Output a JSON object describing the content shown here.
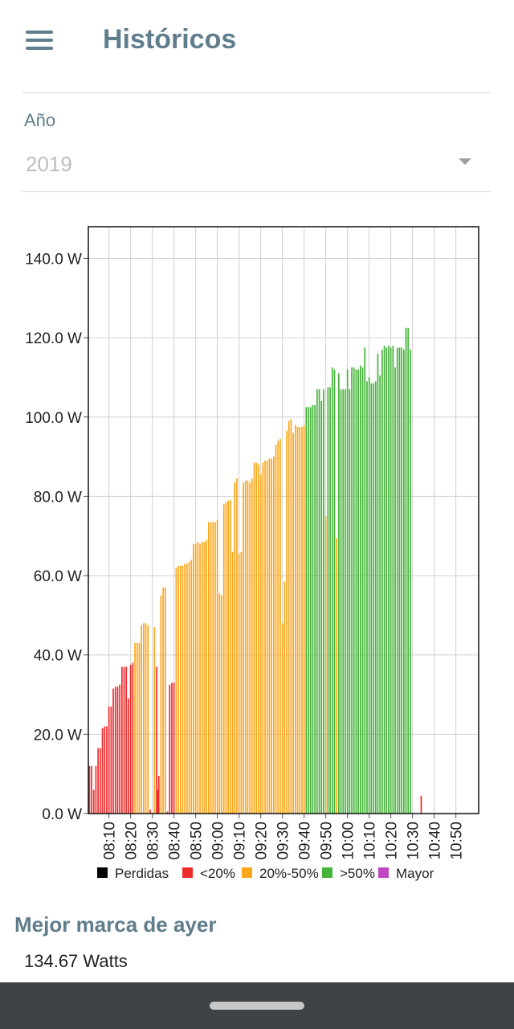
{
  "header": {
    "title": "Históricos",
    "menu_icon": "hamburger-menu-icon"
  },
  "year_filter": {
    "label": "Año",
    "value": "2019"
  },
  "chart_data": {
    "type": "bar",
    "stacked": true,
    "ylim": [
      0,
      148
    ],
    "y_ticks": [
      "0.0 W",
      "20.0 W",
      "40.0 W",
      "60.0 W",
      "80.0 W",
      "100.0 W",
      "120.0 W",
      "140.0 W"
    ],
    "y_tick_values": [
      0,
      20,
      40,
      60,
      80,
      100,
      120,
      140
    ],
    "x_ticks": [
      "08:10",
      "08:20",
      "08:30",
      "08:40",
      "08:50",
      "09:00",
      "09:10",
      "09:20",
      "09:30",
      "09:40",
      "09:50",
      "10:00",
      "10:10",
      "10:20",
      "10:30",
      "10:40",
      "10:50"
    ],
    "x_tick_minutes": [
      490,
      500,
      510,
      520,
      530,
      540,
      550,
      560,
      570,
      580,
      590,
      600,
      610,
      620,
      630,
      640,
      650
    ],
    "x_range_minutes": [
      481,
      660
    ],
    "grid": true,
    "legend_position": "bottom",
    "series": [
      {
        "name": "Perdidas",
        "color": "#000000",
        "points": []
      },
      {
        "name": "<20%",
        "color": "#ee2b2b",
        "points": [
          [
            481,
            12
          ],
          [
            482,
            12
          ],
          [
            483,
            6
          ],
          [
            484,
            12
          ],
          [
            485,
            16.5
          ],
          [
            486,
            16.5
          ],
          [
            487,
            21.5
          ],
          [
            488,
            22
          ],
          [
            489,
            22
          ],
          [
            490,
            27
          ],
          [
            491,
            27
          ],
          [
            492,
            31.5
          ],
          [
            493,
            32
          ],
          [
            494,
            32
          ],
          [
            495,
            32.5
          ],
          [
            496,
            37
          ],
          [
            497,
            37
          ],
          [
            498,
            37
          ],
          [
            499,
            29
          ],
          [
            500,
            37.5
          ],
          [
            501,
            38
          ],
          [
            509,
            1
          ],
          [
            511,
            1
          ],
          [
            512,
            37
          ],
          [
            512.5,
            6
          ],
          [
            513,
            9.5
          ],
          [
            517,
            0.5
          ],
          [
            518,
            32.5
          ],
          [
            519,
            33
          ],
          [
            520,
            33
          ],
          [
            548,
            0.5
          ],
          [
            634,
            4.5
          ]
        ]
      },
      {
        "name": "20%-50%",
        "color": "#fba61d",
        "points": [
          [
            502,
            43
          ],
          [
            503,
            43
          ],
          [
            504,
            43
          ],
          [
            505,
            47.5
          ],
          [
            506,
            48
          ],
          [
            507,
            48
          ],
          [
            508,
            47.5
          ],
          [
            511,
            47
          ],
          [
            514,
            55
          ],
          [
            515,
            57
          ],
          [
            516,
            57
          ],
          [
            521,
            62
          ],
          [
            522,
            62.5
          ],
          [
            523,
            62.5
          ],
          [
            524,
            62.5
          ],
          [
            525,
            63
          ],
          [
            526,
            63
          ],
          [
            527,
            63.5
          ],
          [
            528,
            64
          ],
          [
            529,
            68
          ],
          [
            530,
            68
          ],
          [
            531,
            68.5
          ],
          [
            532,
            68
          ],
          [
            533,
            68.5
          ],
          [
            534,
            68.5
          ],
          [
            535,
            69
          ],
          [
            536,
            73.5
          ],
          [
            537,
            73.5
          ],
          [
            538,
            73.5
          ],
          [
            539,
            73.5
          ],
          [
            540,
            74
          ],
          [
            541,
            55.5
          ],
          [
            542,
            55
          ],
          [
            543,
            78
          ],
          [
            544,
            78.5
          ],
          [
            545,
            79
          ],
          [
            546,
            79
          ],
          [
            547,
            66
          ],
          [
            548,
            83.5
          ],
          [
            549,
            84.5
          ],
          [
            550,
            65.5
          ],
          [
            551,
            66
          ],
          [
            552,
            83.5
          ],
          [
            553,
            84
          ],
          [
            554,
            84
          ],
          [
            555,
            83.5
          ],
          [
            556,
            84.5
          ],
          [
            557,
            88.5
          ],
          [
            558,
            88.5
          ],
          [
            559,
            88
          ],
          [
            560,
            85.5
          ],
          [
            561,
            88.5
          ],
          [
            562,
            89
          ],
          [
            563,
            89
          ],
          [
            564,
            89.5
          ],
          [
            565,
            89.5
          ],
          [
            566,
            90
          ],
          [
            567,
            93
          ],
          [
            568,
            94
          ],
          [
            569,
            94.5
          ],
          [
            570,
            48
          ],
          [
            571,
            58.5
          ],
          [
            572,
            96.5
          ],
          [
            573,
            99
          ],
          [
            574,
            99.5
          ],
          [
            575,
            96
          ],
          [
            576,
            98
          ],
          [
            577,
            97.5
          ],
          [
            578,
            97.5
          ],
          [
            579,
            97.5
          ],
          [
            580,
            98
          ],
          [
            590,
            75
          ],
          [
            595,
            69.5
          ]
        ]
      },
      {
        "name": ">50%",
        "color": "#46b33a",
        "points": [
          [
            581,
            102.5
          ],
          [
            582,
            102.5
          ],
          [
            583,
            102.5
          ],
          [
            584,
            103
          ],
          [
            585,
            103
          ],
          [
            586,
            107
          ],
          [
            587,
            107
          ],
          [
            588,
            104
          ],
          [
            589,
            107
          ],
          [
            591,
            107.5
          ],
          [
            592,
            107.5
          ],
          [
            593,
            112.5
          ],
          [
            594,
            112
          ],
          [
            596,
            111
          ],
          [
            597,
            107
          ],
          [
            598,
            107
          ],
          [
            599,
            107
          ],
          [
            600,
            112
          ],
          [
            601,
            107
          ],
          [
            602,
            112.5
          ],
          [
            603,
            112.5
          ],
          [
            604,
            112
          ],
          [
            605,
            112
          ],
          [
            606,
            113
          ],
          [
            607,
            112.5
          ],
          [
            608,
            117.5
          ],
          [
            609,
            109
          ],
          [
            610,
            110
          ],
          [
            611,
            108.5
          ],
          [
            612,
            108.5
          ],
          [
            613,
            109
          ],
          [
            614,
            116
          ],
          [
            615,
            110.5
          ],
          [
            616,
            117
          ],
          [
            617,
            118
          ],
          [
            618,
            117.5
          ],
          [
            619,
            118
          ],
          [
            620,
            117.5
          ],
          [
            621,
            118
          ],
          [
            622,
            112.5
          ],
          [
            623,
            117.5
          ],
          [
            624,
            117.5
          ],
          [
            625,
            117.5
          ],
          [
            626,
            117
          ],
          [
            627,
            122.5
          ],
          [
            628,
            122.5
          ],
          [
            629,
            117
          ]
        ]
      },
      {
        "name": "Mayor",
        "color": "#c045c0",
        "points": []
      }
    ]
  },
  "best_mark": {
    "title": "Mejor marca de ayer",
    "value": "134.67 Watts"
  }
}
